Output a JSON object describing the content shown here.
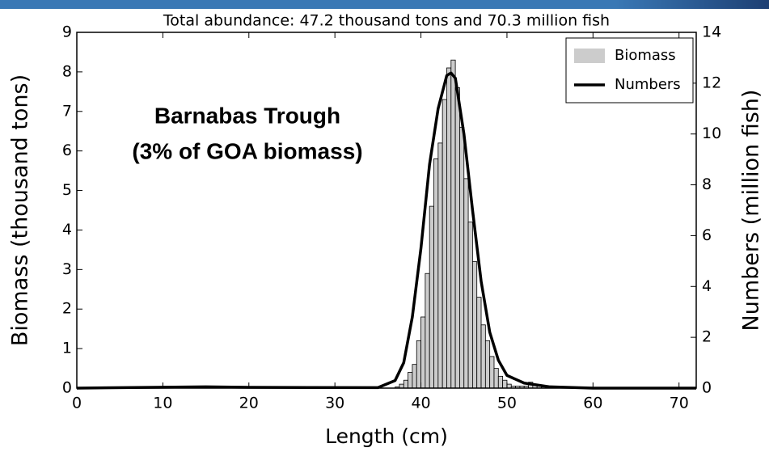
{
  "chart_data": {
    "type": "histogram",
    "title": "Total abundance: 47.2 thousand tons and 70.3 million fish",
    "xlabel": "Length (cm)",
    "ylabel": "Biomass (thousand tons)",
    "y2label": "Numbers (million fish)",
    "annotation": [
      "Barnabas Trough",
      "(3% of GOA biomass)"
    ],
    "bins": [
      37,
      37.5,
      38,
      38.5,
      39,
      39.5,
      40,
      40.5,
      41,
      41.5,
      42,
      42.5,
      43,
      43.5,
      44,
      44.5,
      45,
      45.5,
      46,
      46.5,
      47,
      47.5,
      48,
      48.5,
      49,
      49.5,
      50,
      50.5,
      51,
      51.5,
      52,
      52.5,
      53,
      53.5,
      54,
      54.5,
      55
    ],
    "series": [
      {
        "name": "Biomass",
        "type": "histogram",
        "color": "#cccccc",
        "values": [
          0.03,
          0.1,
          0.2,
          0.4,
          0.6,
          1.2,
          1.8,
          2.9,
          4.6,
          5.8,
          6.2,
          7.3,
          8.1,
          8.3,
          7.6,
          6.6,
          5.3,
          4.2,
          3.2,
          2.3,
          1.6,
          1.2,
          0.8,
          0.5,
          0.3,
          0.2,
          0.1,
          0.05,
          0.05,
          0.05,
          0.05,
          0.15,
          0.1,
          0.05,
          0.03,
          0.02
        ]
      },
      {
        "name": "Numbers",
        "type": "line",
        "axis": "y2",
        "color": "#000000",
        "x": [
          0,
          15,
          20,
          35,
          37,
          38,
          39,
          40,
          41,
          42,
          43,
          43.5,
          44,
          45,
          46,
          47,
          48,
          49,
          50,
          52,
          55,
          60,
          72
        ],
        "values": [
          0,
          0.05,
          0.03,
          0.02,
          0.3,
          1.0,
          2.8,
          5.5,
          8.8,
          11.0,
          12.3,
          12.4,
          12.2,
          10.0,
          7.0,
          4.2,
          2.2,
          1.1,
          0.5,
          0.2,
          0.05,
          0,
          0
        ]
      }
    ],
    "xlim": [
      0,
      72
    ],
    "xticks": [
      0,
      10,
      20,
      30,
      40,
      50,
      60,
      70
    ],
    "ylim": [
      0,
      9
    ],
    "yticks": [
      0,
      1,
      2,
      3,
      4,
      5,
      6,
      7,
      8,
      9
    ],
    "y2lim": [
      0,
      14
    ],
    "y2ticks": [
      0,
      2,
      4,
      6,
      8,
      10,
      12,
      14
    ],
    "legend": "upper right"
  }
}
